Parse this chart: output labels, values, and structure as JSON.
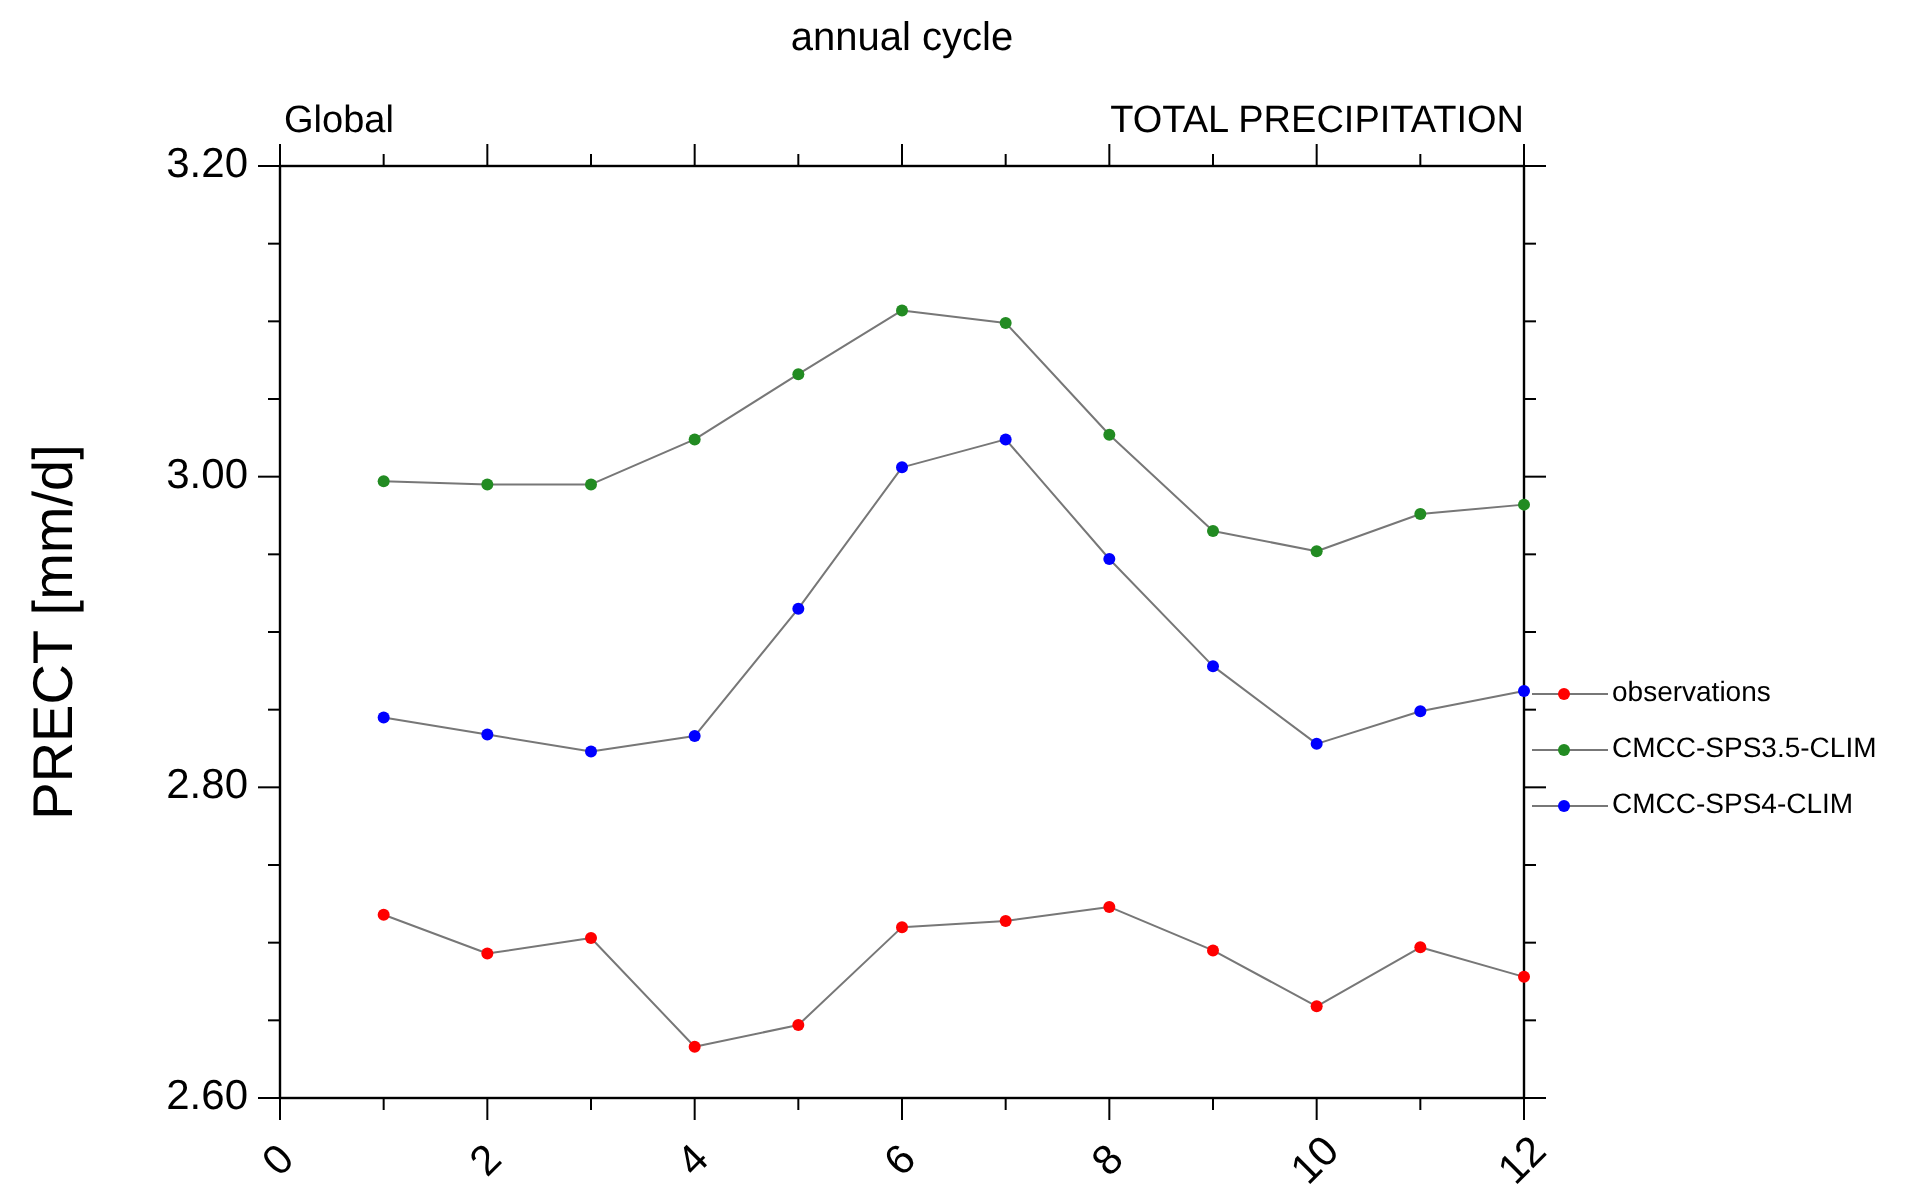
{
  "chart_data": {
    "type": "line",
    "title": "annual cycle",
    "annotations": [
      "Global",
      "TOTAL PRECIPITATION"
    ],
    "ylabel": "PRECT [mm/d]",
    "x": [
      1,
      2,
      3,
      4,
      5,
      6,
      7,
      8,
      9,
      10,
      11,
      12
    ],
    "xlim": [
      0,
      12
    ],
    "xticks": [
      0,
      {
        "value": 1,
        "label": null
      },
      2,
      {
        "value": 3,
        "label": null
      },
      4,
      {
        "value": 5,
        "label": null
      },
      6,
      {
        "value": 7,
        "label": null
      },
      8,
      {
        "value": 9,
        "label": null
      },
      10,
      {
        "value": 11,
        "label": null
      },
      12
    ],
    "ylim": [
      2.6,
      3.2
    ],
    "yticks": [
      {
        "value": 2.6,
        "label": "2.60"
      },
      {
        "value": 2.65,
        "label": null
      },
      {
        "value": 2.7,
        "label": null
      },
      {
        "value": 2.75,
        "label": null
      },
      {
        "value": 2.8,
        "label": "2.80"
      },
      {
        "value": 2.85,
        "label": null
      },
      {
        "value": 2.9,
        "label": null
      },
      {
        "value": 2.95,
        "label": null
      },
      {
        "value": 3.0,
        "label": "3.00"
      },
      {
        "value": 3.05,
        "label": null
      },
      {
        "value": 3.1,
        "label": null
      },
      {
        "value": 3.15,
        "label": null
      },
      {
        "value": 3.2,
        "label": "3.20"
      }
    ],
    "grid": false,
    "legend": "right",
    "marker": "circle",
    "line_style": "solid",
    "series": [
      {
        "name": "observations",
        "color": "#ff0000",
        "values": [
          2.718,
          2.693,
          2.703,
          2.633,
          2.647,
          2.71,
          2.714,
          2.723,
          2.695,
          2.659,
          2.697,
          2.678
        ]
      },
      {
        "name": "CMCC-SPS3.5-CLIM",
        "color": "#228b22",
        "values": [
          2.997,
          2.995,
          2.995,
          3.024,
          3.066,
          3.107,
          3.099,
          3.027,
          2.965,
          2.952,
          2.976,
          2.982
        ]
      },
      {
        "name": "CMCC-SPS4-CLIM",
        "color": "#0000ff",
        "values": [
          2.845,
          2.834,
          2.823,
          2.833,
          2.915,
          3.006,
          3.024,
          2.947,
          2.878,
          2.828,
          2.849,
          2.862
        ]
      }
    ]
  }
}
